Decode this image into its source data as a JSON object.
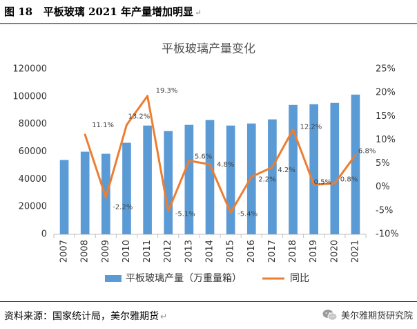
{
  "figure": {
    "number": "图 18",
    "caption": "平板玻璃 2021 年产量增加明显",
    "return_mark": "↵"
  },
  "source": {
    "text": "资料来源：国家统计局，美尔雅期货",
    "return_mark": "↵"
  },
  "watermark": {
    "text": "美尔雅期货研究院",
    "icon": "wechat-icon"
  },
  "chart_data": {
    "type": "bar+line",
    "title": "平板玻璃产量变化",
    "categories": [
      "2007",
      "2008",
      "2009",
      "2010",
      "2011",
      "2012",
      "2013",
      "2014",
      "2015",
      "2016",
      "2017",
      "2018",
      "2019",
      "2020",
      "2021"
    ],
    "series": [
      {
        "name": "平板玻璃产量（万重量箱）",
        "type": "bar",
        "axis": "left",
        "color": "#5B9BD5",
        "values": [
          54000,
          60000,
          58500,
          66500,
          79000,
          75000,
          79500,
          83000,
          79000,
          80500,
          83500,
          94000,
          94500,
          95500,
          101500
        ]
      },
      {
        "name": "同比",
        "type": "line",
        "axis": "right",
        "color": "#ED7D31",
        "values": [
          null,
          11.1,
          -2.2,
          13.2,
          19.3,
          -5.1,
          5.6,
          4.8,
          -5.4,
          2.2,
          4.2,
          12.2,
          0.5,
          0.8,
          6.8
        ]
      }
    ],
    "data_labels": [
      "",
      "11.1%",
      "-2.2%",
      "13.2%",
      "19.3%",
      "-5.1%",
      "5.6%",
      "4.8%",
      "-5.4%",
      "2.2%",
      "4.2%",
      "12.2%",
      "0.5%",
      "0.8%",
      "6.8%"
    ],
    "y_left": {
      "min": 0,
      "max": 120000,
      "step": 20000,
      "ticks": [
        "0",
        "20000",
        "40000",
        "60000",
        "80000",
        "100000",
        "120000"
      ]
    },
    "y_right": {
      "min": -10,
      "max": 25,
      "step": 5,
      "ticks": [
        "-10%",
        "-5%",
        "0%",
        "5%",
        "10%",
        "15%",
        "20%",
        "25%"
      ]
    },
    "grid": false,
    "legend_position": "bottom"
  }
}
